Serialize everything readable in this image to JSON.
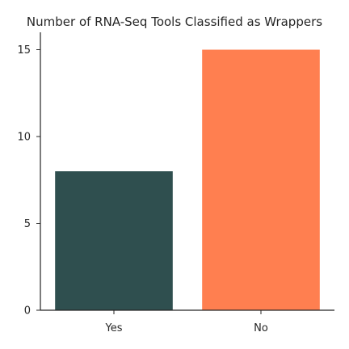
{
  "chart_data": {
    "type": "bar",
    "title": "Number of RNA-Seq Tools Classified as Wrappers",
    "xlabel": "",
    "ylabel": "",
    "categories": [
      "Yes",
      "No"
    ],
    "values": [
      8,
      15
    ],
    "colors": [
      "#2f4f4f",
      "#ff7f50"
    ],
    "ylim": [
      0,
      16
    ],
    "yticks": [
      0,
      5,
      10,
      15
    ],
    "grid": false,
    "legend": "none"
  }
}
